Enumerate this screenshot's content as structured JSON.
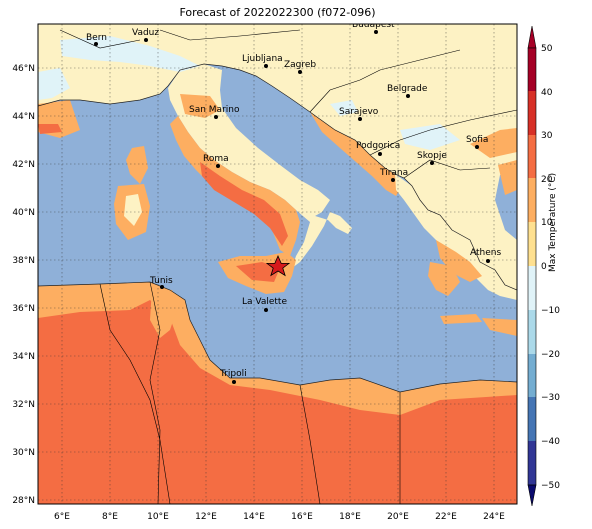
{
  "title": "Forecast of 2022022300 (f072-096)",
  "colorbar": {
    "label": "Max Temperature (°C)",
    "ticks": [
      "50",
      "40",
      "30",
      "20",
      "10",
      "0",
      "−10",
      "−20",
      "−30",
      "−40",
      "−50"
    ],
    "colors": [
      "#a50026",
      "#d73027",
      "#f46d43",
      "#fdae61",
      "#fee090",
      "#e0f3f8",
      "#abd9e9",
      "#74add1",
      "#4575b4",
      "#313695"
    ],
    "top_color": "#a50026",
    "bottom_color": "#0a0a6e"
  },
  "axes": {
    "lat_labels": [
      "46°N",
      "44°N",
      "42°N",
      "40°N",
      "38°N",
      "36°N",
      "34°N",
      "32°N",
      "30°N",
      "28°N"
    ],
    "lon_labels": [
      "6°E",
      "8°E",
      "10°E",
      "12°E",
      "14°E",
      "16°E",
      "18°E",
      "20°E",
      "22°E",
      "24°E"
    ]
  },
  "cities": [
    {
      "name": "Bern"
    },
    {
      "name": "Vaduz"
    },
    {
      "name": "Budapest"
    },
    {
      "name": "Ljubljana"
    },
    {
      "name": "Zagreb"
    },
    {
      "name": "Belgrade"
    },
    {
      "name": "San Marino"
    },
    {
      "name": "Sarajevo"
    },
    {
      "name": "Sofia"
    },
    {
      "name": "Roma"
    },
    {
      "name": "Podgorica"
    },
    {
      "name": "Skopje"
    },
    {
      "name": "Tirana"
    },
    {
      "name": "Athens"
    },
    {
      "name": "Tunis"
    },
    {
      "name": "La Valette"
    },
    {
      "name": "Tripoli"
    }
  ],
  "marker": {
    "type": "star",
    "color": "#d7191c"
  },
  "sea_color": "#8fb0d8"
}
